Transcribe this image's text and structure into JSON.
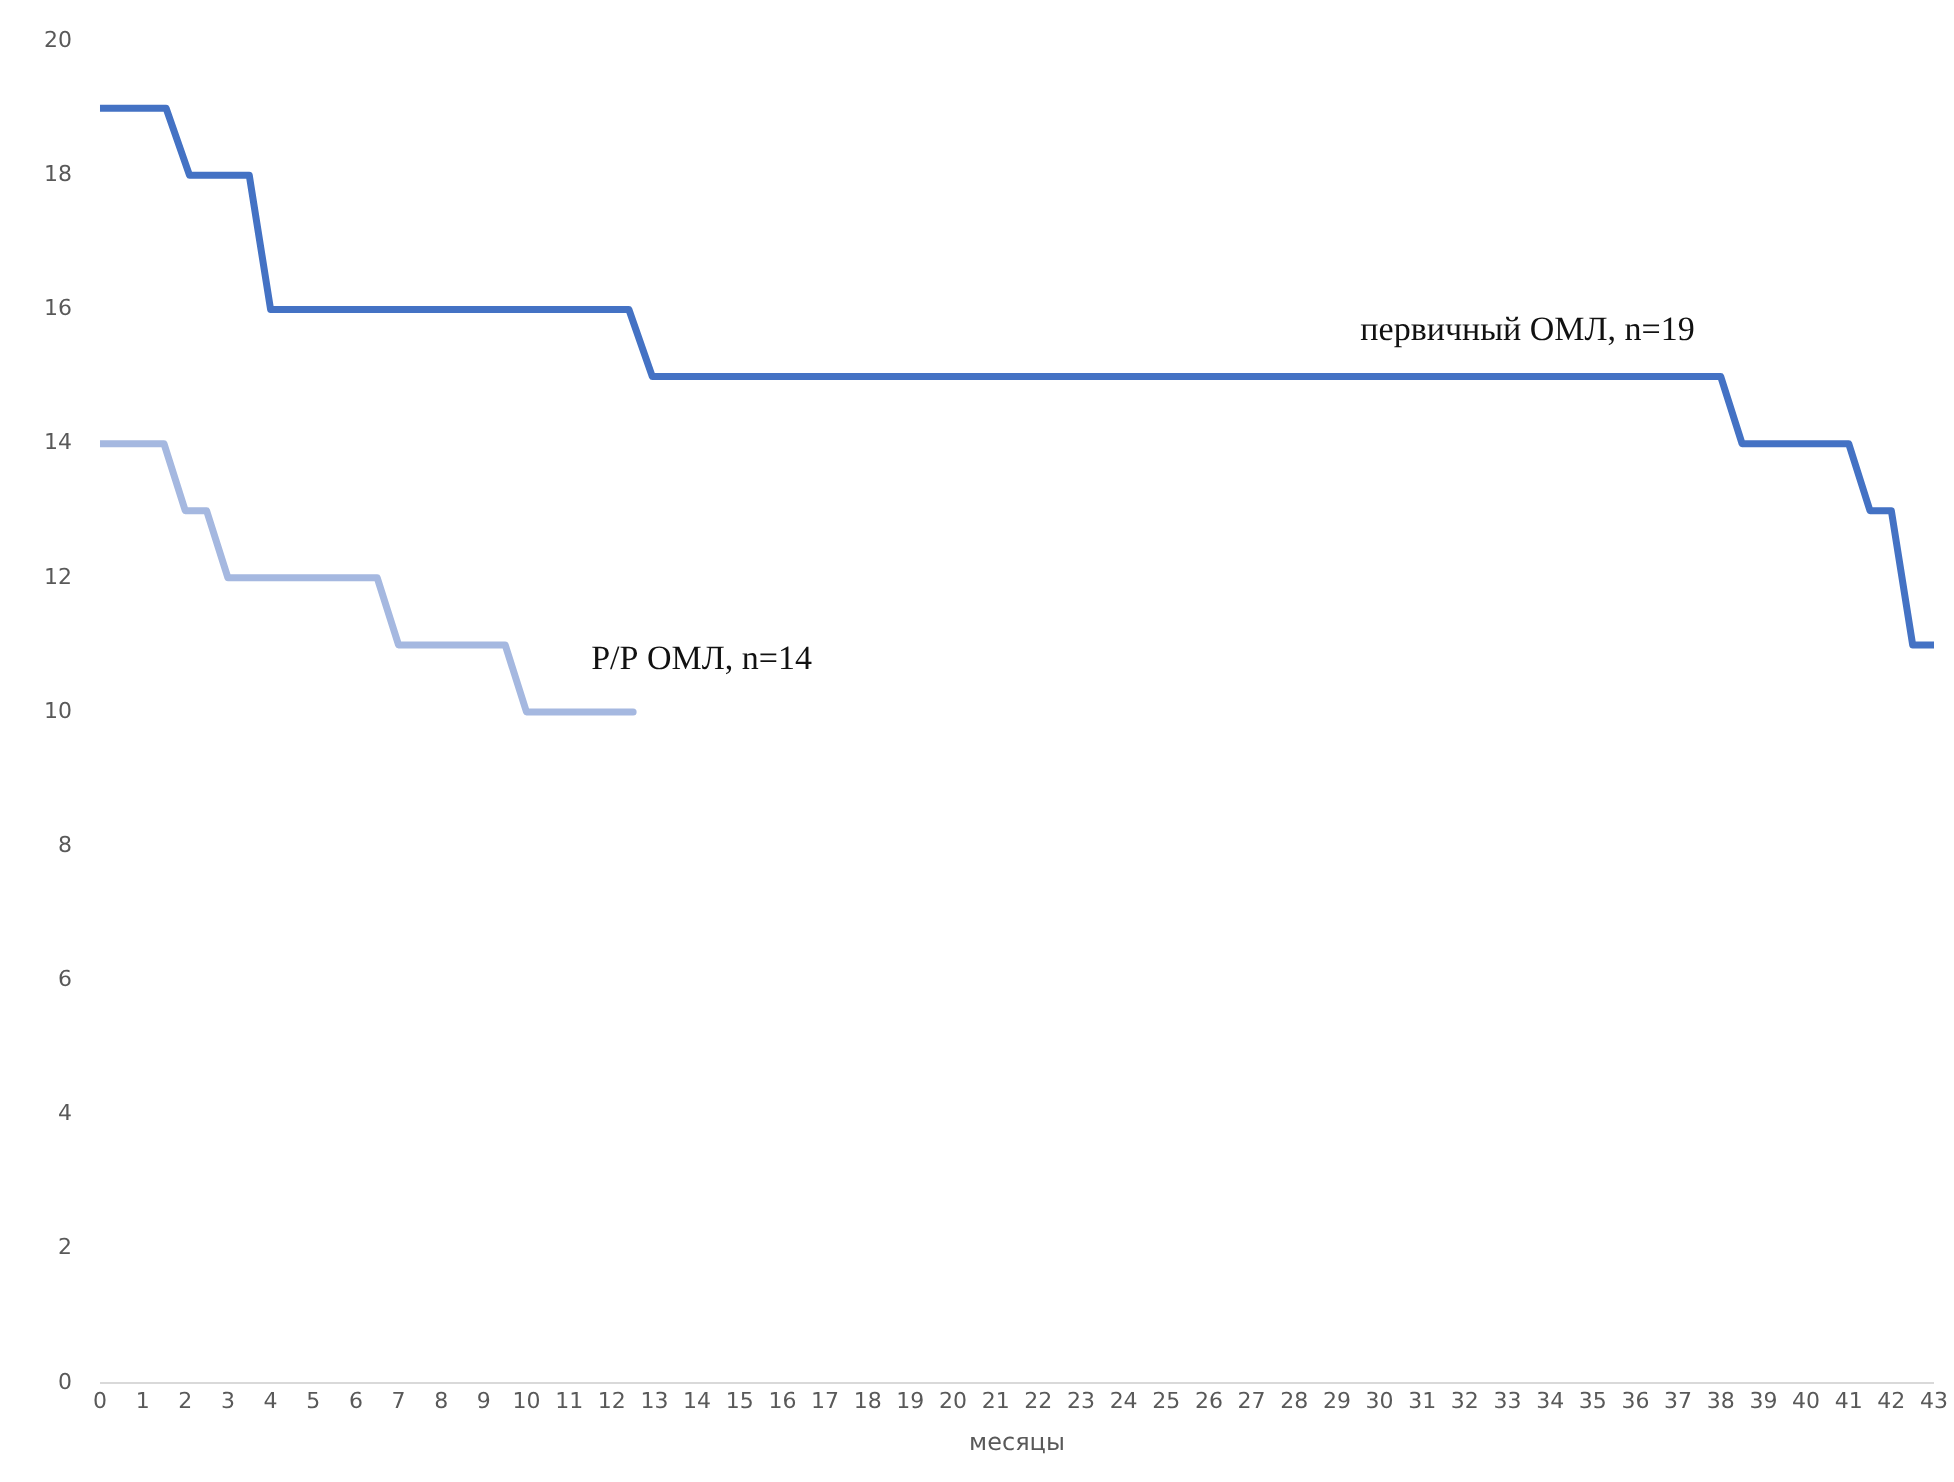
{
  "chart_data": {
    "type": "line",
    "xlabel": "месяцы",
    "xlim": [
      0,
      43
    ],
    "xticks": [
      0,
      1,
      2,
      3,
      4,
      5,
      6,
      7,
      8,
      9,
      10,
      11,
      12,
      13,
      14,
      15,
      16,
      17,
      18,
      19,
      20,
      21,
      22,
      23,
      24,
      25,
      26,
      27,
      28,
      29,
      30,
      31,
      32,
      33,
      34,
      35,
      36,
      37,
      38,
      39,
      40,
      41,
      42,
      43
    ],
    "ylim": [
      0,
      20
    ],
    "yticks": [
      0,
      2,
      4,
      6,
      8,
      10,
      12,
      14,
      16,
      18,
      20
    ],
    "grid": false,
    "legend": false,
    "marker": "none",
    "line_style": "solid",
    "series": [
      {
        "name": "первичный ОМЛ, n=19",
        "color": "#4472c4",
        "x": [
          0,
          1.55,
          2.1,
          3.5,
          4,
          12.4,
          12.95,
          38,
          38.5,
          41,
          41.5,
          42,
          42.5,
          43
        ],
        "values": [
          19,
          19,
          18,
          18,
          16,
          16,
          15,
          15,
          14,
          14,
          13,
          13,
          11,
          11
        ]
      },
      {
        "name": "Р/Р ОМЛ, n=14",
        "color": "#a5b8e0",
        "x": [
          0,
          1.5,
          2,
          2.5,
          3,
          6.5,
          7,
          9.5,
          10,
          12.5
        ],
        "values": [
          14,
          14,
          13,
          13,
          12,
          12,
          11,
          11,
          10,
          10
        ]
      }
    ]
  }
}
